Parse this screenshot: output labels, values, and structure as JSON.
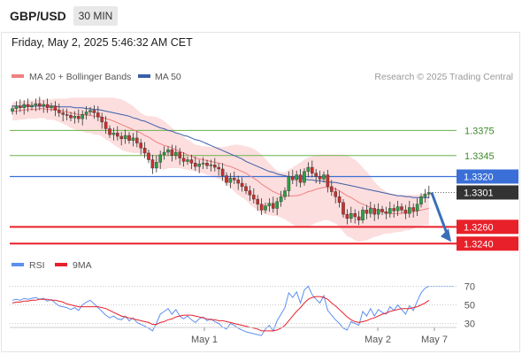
{
  "header": {
    "pair": "GBP/USD",
    "timeframe": "30 MIN",
    "datetime": "Friday, May 2, 2025 5:46:32 AM CET"
  },
  "legend": {
    "ma20_bb": "MA 20 + Bollinger Bands",
    "ma50": "MA 50",
    "rsi": "RSI",
    "ma9": "9MA"
  },
  "credit": "Research © 2025 Trading Central",
  "colors": {
    "resistance": "#6ab04c",
    "support": "#e8202a",
    "pivot": "#3a6fd8",
    "current": "#333333",
    "ma20": "#f08080",
    "bb_fill": "#fcd8d8",
    "ma50": "#3a5fa8",
    "candle_up": "#2e9e44",
    "candle_down": "#c9302c",
    "rsi_line": "#5b8ff0",
    "rsi_ma": "#e8202a",
    "arrow": "#3a6fb8"
  },
  "chart_data": {
    "type": "candlestick",
    "symbol": "GBP/USD",
    "interval": "30 MIN",
    "price_levels": [
      {
        "value": 1.3375,
        "label": "1.3375",
        "kind": "resistance"
      },
      {
        "value": 1.3345,
        "label": "1.3345",
        "kind": "resistance"
      },
      {
        "value": 1.332,
        "label": "1.3320",
        "kind": "pivot"
      },
      {
        "value": 1.3301,
        "label": "1.3301",
        "kind": "current"
      },
      {
        "value": 1.326,
        "label": "1.3260",
        "kind": "support"
      },
      {
        "value": 1.324,
        "label": "1.3240",
        "kind": "support"
      }
    ],
    "xlabels": [
      "May 1",
      "May 2",
      "May 7"
    ],
    "rsi_ticks": [
      "70",
      "50",
      "30"
    ],
    "ylim": [
      1.3235,
      1.3425
    ],
    "rsi_ylim": [
      20,
      80
    ],
    "close": [
      1.3401,
      1.3404,
      1.3402,
      1.3406,
      1.3403,
      1.3405,
      1.3407,
      1.3404,
      1.3406,
      1.3402,
      1.3404,
      1.3399,
      1.3396,
      1.3394,
      1.3393,
      1.339,
      1.3392,
      1.3389,
      1.3394,
      1.3397,
      1.3399,
      1.3396,
      1.3391,
      1.3385,
      1.3377,
      1.337,
      1.3372,
      1.3368,
      1.3365,
      1.3369,
      1.3363,
      1.3366,
      1.336,
      1.3354,
      1.3348,
      1.334,
      1.333,
      1.3337,
      1.3346,
      1.3349,
      1.3352,
      1.3345,
      1.3349,
      1.3342,
      1.3338,
      1.334,
      1.3336,
      1.3332,
      1.3335,
      1.3336,
      1.3333,
      1.3334,
      1.3331,
      1.3329,
      1.3321,
      1.3313,
      1.3318,
      1.3316,
      1.3312,
      1.3308,
      1.3303,
      1.3298,
      1.3293,
      1.3287,
      1.328,
      1.3285,
      1.3288,
      1.3282,
      1.329,
      1.3296,
      1.3303,
      1.332,
      1.3316,
      1.3322,
      1.3313,
      1.3326,
      1.3331,
      1.3324,
      1.332,
      1.3317,
      1.3322,
      1.3308,
      1.3302,
      1.3296,
      1.3289,
      1.3275,
      1.327,
      1.3276,
      1.3272,
      1.3268,
      1.328,
      1.3276,
      1.3282,
      1.3275,
      1.3281,
      1.3278,
      1.3276,
      1.3282,
      1.3279,
      1.3284,
      1.328,
      1.3276,
      1.3283,
      1.3279,
      1.3287,
      1.3296,
      1.3299,
      1.3301
    ],
    "ma20": [
      1.3398,
      1.3398,
      1.3399,
      1.3399,
      1.34,
      1.34,
      1.34,
      1.3401,
      1.3401,
      1.34,
      1.34,
      1.34,
      1.3399,
      1.3398,
      1.3397,
      1.3396,
      1.3395,
      1.3394,
      1.3394,
      1.3393,
      1.3393,
      1.3392,
      1.3392,
      1.3391,
      1.3389,
      1.3388,
      1.3386,
      1.3384,
      1.3382,
      1.338,
      1.3378,
      1.3376,
      1.3374,
      1.3372,
      1.3369,
      1.3367,
      1.3364,
      1.3361,
      1.3359,
      1.3357,
      1.3356,
      1.3354,
      1.3352,
      1.335,
      1.3348,
      1.3346,
      1.3344,
      1.3342,
      1.3341,
      1.334,
      1.3339,
      1.3338,
      1.3337,
      1.3336,
      1.3335,
      1.3333,
      1.3332,
      1.333,
      1.3328,
      1.3326,
      1.3324,
      1.3321,
      1.3318,
      1.3315,
      1.3311,
      1.3308,
      1.3305,
      1.3302,
      1.33,
      1.3298,
      1.3297,
      1.3297,
      1.3297,
      1.3297,
      1.3298,
      1.33,
      1.3302,
      1.3303,
      1.3305,
      1.3306,
      1.3307,
      1.3307,
      1.3306,
      1.3305,
      1.3303,
      1.33,
      1.3297,
      1.3295,
      1.3292,
      1.3289,
      1.3287,
      1.3285,
      1.3283,
      1.3281,
      1.3279,
      1.3278,
      1.3277,
      1.3276,
      1.3276,
      1.3276,
      1.3276,
      1.3277,
      1.3277,
      1.3278,
      1.3279,
      1.328,
      1.3281,
      1.3282
    ],
    "bb_upper": [
      1.3409,
      1.3409,
      1.341,
      1.341,
      1.3411,
      1.3411,
      1.3411,
      1.3412,
      1.3412,
      1.3412,
      1.3412,
      1.3413,
      1.3413,
      1.3413,
      1.3413,
      1.3414,
      1.3414,
      1.3414,
      1.3414,
      1.3414,
      1.3414,
      1.3414,
      1.3414,
      1.3414,
      1.3414,
      1.3414,
      1.3414,
      1.3413,
      1.3412,
      1.341,
      1.3407,
      1.3404,
      1.34,
      1.3396,
      1.3393,
      1.3392,
      1.3392,
      1.3391,
      1.3389,
      1.3386,
      1.3382,
      1.3378,
      1.3374,
      1.337,
      1.3367,
      1.3364,
      1.3361,
      1.3358,
      1.3357,
      1.3356,
      1.3356,
      1.3355,
      1.3355,
      1.3355,
      1.3355,
      1.3356,
      1.3357,
      1.3358,
      1.3358,
      1.3357,
      1.3356,
      1.3355,
      1.3353,
      1.335,
      1.3346,
      1.3341,
      1.3336,
      1.3331,
      1.3327,
      1.3325,
      1.3325,
      1.3328,
      1.3331,
      1.3334,
      1.3337,
      1.334,
      1.3343,
      1.3344,
      1.3345,
      1.3346,
      1.3346,
      1.3346,
      1.3346,
      1.3346,
      1.3346,
      1.3346,
      1.3345,
      1.3343,
      1.334,
      1.3336,
      1.3331,
      1.3326,
      1.332,
      1.3314,
      1.3309,
      1.3305,
      1.3302,
      1.33,
      1.3299,
      1.3298,
      1.3298,
      1.3298,
      1.3298,
      1.3298,
      1.3298,
      1.3299,
      1.33,
      1.3302
    ],
    "bb_lower": [
      1.3387,
      1.3387,
      1.3388,
      1.3388,
      1.3389,
      1.3389,
      1.3389,
      1.339,
      1.339,
      1.3388,
      1.3388,
      1.3387,
      1.3385,
      1.3383,
      1.3381,
      1.3378,
      1.3376,
      1.3374,
      1.3374,
      1.3372,
      1.3372,
      1.337,
      1.337,
      1.3368,
      1.3364,
      1.3362,
      1.3358,
      1.3355,
      1.3352,
      1.335,
      1.3349,
      1.3348,
      1.3348,
      1.3348,
      1.3345,
      1.3342,
      1.3336,
      1.3331,
      1.3329,
      1.3328,
      1.333,
      1.333,
      1.333,
      1.333,
      1.3329,
      1.3328,
      1.3327,
      1.3326,
      1.3325,
      1.3324,
      1.3322,
      1.3321,
      1.3319,
      1.3317,
      1.3315,
      1.331,
      1.3307,
      1.3302,
      1.3298,
      1.3295,
      1.3292,
      1.3287,
      1.3283,
      1.328,
      1.3276,
      1.3275,
      1.3274,
      1.3273,
      1.3273,
      1.3271,
      1.3269,
      1.3266,
      1.3263,
      1.326,
      1.3259,
      1.326,
      1.3261,
      1.3262,
      1.3265,
      1.3266,
      1.3268,
      1.3268,
      1.3266,
      1.3264,
      1.326,
      1.3254,
      1.3249,
      1.3247,
      1.3244,
      1.3242,
      1.3243,
      1.3244,
      1.3246,
      1.3248,
      1.3249,
      1.3251,
      1.3252,
      1.3252,
      1.3253,
      1.3254,
      1.3254,
      1.3256,
      1.3256,
      1.3258,
      1.326,
      1.3261,
      1.3262,
      1.3262
    ],
    "ma50": [
      1.3404,
      1.3404,
      1.3404,
      1.3404,
      1.3404,
      1.3404,
      1.3404,
      1.3404,
      1.3404,
      1.3404,
      1.3404,
      1.3404,
      1.3403,
      1.3403,
      1.3403,
      1.3403,
      1.3402,
      1.3402,
      1.3402,
      1.3401,
      1.3401,
      1.34,
      1.34,
      1.3399,
      1.3398,
      1.3397,
      1.3396,
      1.3395,
      1.3394,
      1.3393,
      1.3392,
      1.339,
      1.3389,
      1.3387,
      1.3386,
      1.3384,
      1.3382,
      1.338,
      1.3378,
      1.3377,
      1.3375,
      1.3374,
      1.3372,
      1.3371,
      1.3369,
      1.3368,
      1.3366,
      1.3364,
      1.3363,
      1.3361,
      1.3359,
      1.3357,
      1.3355,
      1.3353,
      1.3351,
      1.3349,
      1.3347,
      1.3345,
      1.3343,
      1.3341,
      1.3338,
      1.3336,
      1.3334,
      1.3332,
      1.333,
      1.3328,
      1.3326,
      1.3325,
      1.3323,
      1.3322,
      1.3321,
      1.332,
      1.3319,
      1.3318,
      1.3318,
      1.3317,
      1.3316,
      1.3316,
      1.3315,
      1.3315,
      1.3314,
      1.3314,
      1.3313,
      1.3313,
      1.3312,
      1.3311,
      1.331,
      1.3309,
      1.3308,
      1.3307,
      1.3306,
      1.3305,
      1.3304,
      1.3303,
      1.3302,
      1.3301,
      1.33,
      1.3299,
      1.3298,
      1.3297,
      1.3297,
      1.3296,
      1.3296,
      1.3295,
      1.3295,
      1.3295,
      1.3295,
      1.3295
    ],
    "rsi": [
      55,
      56,
      55,
      57,
      56,
      57,
      58,
      56,
      57,
      54,
      56,
      52,
      49,
      48,
      47,
      45,
      47,
      44,
      50,
      53,
      55,
      51,
      47,
      43,
      39,
      36,
      38,
      35,
      34,
      38,
      33,
      36,
      31,
      29,
      27,
      25,
      22,
      30,
      40,
      43,
      46,
      40,
      45,
      38,
      35,
      38,
      34,
      31,
      35,
      37,
      33,
      35,
      32,
      30,
      26,
      24,
      30,
      28,
      25,
      23,
      21,
      20,
      19,
      18,
      17,
      24,
      28,
      22,
      33,
      40,
      47,
      63,
      58,
      64,
      52,
      66,
      70,
      61,
      56,
      52,
      60,
      44,
      39,
      34,
      30,
      25,
      23,
      32,
      30,
      28,
      43,
      38,
      46,
      38,
      45,
      42,
      40,
      48,
      44,
      50,
      45,
      40,
      49,
      44,
      54,
      63,
      68,
      70
    ],
    "rsi_ma": [
      52,
      53,
      53,
      54,
      54,
      55,
      55,
      56,
      56,
      56,
      55,
      55,
      54,
      53,
      51,
      50,
      49,
      48,
      48,
      48,
      48,
      48,
      48,
      47,
      46,
      44,
      42,
      40,
      38,
      37,
      36,
      35,
      34,
      33,
      32,
      31,
      29,
      29,
      31,
      32,
      34,
      35,
      37,
      38,
      39,
      39,
      39,
      38,
      37,
      36,
      35,
      34,
      34,
      33,
      33,
      32,
      31,
      30,
      29,
      28,
      27,
      26,
      25,
      24,
      22,
      22,
      22,
      22,
      23,
      25,
      28,
      33,
      38,
      43,
      47,
      52,
      56,
      58,
      59,
      59,
      58,
      56,
      52,
      49,
      45,
      41,
      37,
      34,
      32,
      31,
      32,
      33,
      35,
      36,
      38,
      40,
      41,
      43,
      44,
      45,
      46,
      46,
      46,
      47,
      48,
      50,
      52,
      55
    ]
  }
}
